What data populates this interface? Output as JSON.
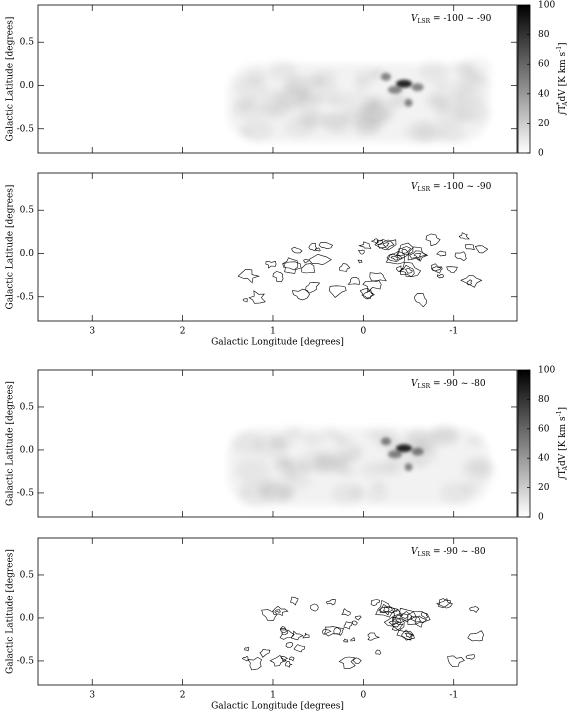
{
  "chart_data": [
    {
      "type": "heatmap",
      "annotation": {
        "symbol": "V",
        "subscript": "LSR",
        "text": " = -100 ~ -90"
      },
      "ylabel": "Galactic Latitude [degrees]",
      "xlim": [
        3.6,
        -1.7
      ],
      "ylim": [
        -0.78,
        0.93
      ],
      "xticks": [
        3,
        2,
        1,
        0,
        -1
      ],
      "xtick_labels": false,
      "yticks": [
        -0.5,
        {
          "value": 0,
          "label": "0.0"
        },
        0.5
      ],
      "colormap": [
        "#ffffff",
        "#000000"
      ],
      "colorbar": {
        "lim": [
          0,
          100
        ],
        "ticks": [
          0,
          20,
          40,
          60,
          80,
          100
        ],
        "label": [
          "∫T",
          "*",
          "A",
          "dV [K km s",
          "-1",
          "]"
        ]
      }
    },
    {
      "type": "contour",
      "annotation": {
        "symbol": "V",
        "subscript": "LSR",
        "text": " = -100 ~ -90"
      },
      "ylabel": "Galactic Latitude [degrees]",
      "xlabel": "Galactic Longitude [degrees]",
      "xlim": [
        3.6,
        -1.7
      ],
      "ylim": [
        -0.78,
        0.93
      ],
      "xticks": [
        3,
        2,
        1,
        0,
        -1
      ],
      "xtick_labels": true,
      "yticks": [
        -0.5,
        {
          "value": 0,
          "label": "0.0"
        },
        0.5
      ],
      "color": "#000000"
    },
    {
      "type": "heatmap",
      "annotation": {
        "symbol": "V",
        "subscript": "LSR",
        "text": " = -90 ~ -80"
      },
      "ylabel": "Galactic Latitude [degrees]",
      "xlim": [
        3.6,
        -1.7
      ],
      "ylim": [
        -0.78,
        0.93
      ],
      "xticks": [
        3,
        2,
        1,
        0,
        -1
      ],
      "xtick_labels": false,
      "yticks": [
        -0.5,
        {
          "value": 0,
          "label": "0.0"
        },
        0.5
      ],
      "colormap": [
        "#ffffff",
        "#000000"
      ],
      "colorbar": {
        "lim": [
          0,
          100
        ],
        "ticks": [
          0,
          20,
          40,
          60,
          80,
          100
        ],
        "label": [
          "∫T",
          "*",
          "A",
          "dV [K km s",
          "-1",
          "]"
        ]
      }
    },
    {
      "type": "contour",
      "annotation": {
        "symbol": "V",
        "subscript": "LSR",
        "text": " = -90 ~ -80"
      },
      "ylabel": "Galactic Latitude [degrees]",
      "xlabel": "Galactic Longitude [degrees]",
      "xlim": [
        3.6,
        -1.7
      ],
      "ylim": [
        -0.78,
        0.93
      ],
      "xticks": [
        3,
        2,
        1,
        0,
        -1
      ],
      "xtick_labels": true,
      "yticks": [
        -0.5,
        {
          "value": 0,
          "label": "0.0"
        },
        0.5
      ],
      "color": "#000000"
    }
  ]
}
